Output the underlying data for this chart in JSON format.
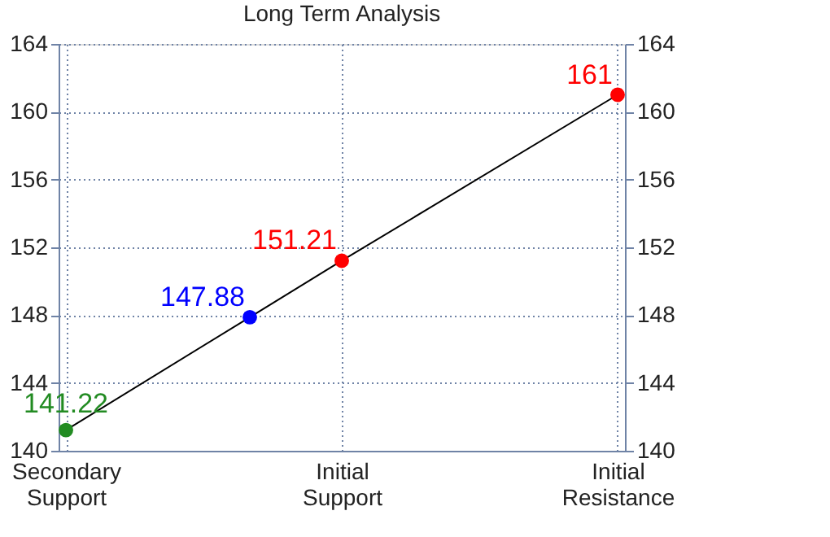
{
  "chart_data": {
    "type": "line",
    "title": "Long Term Analysis",
    "categories": [
      "Secondary Support",
      null,
      null,
      "Initial Support",
      null,
      null,
      "Initial Resistance"
    ],
    "series": [
      {
        "color": "#000000",
        "colors": [
          "#228b22",
          null,
          "#0000ff",
          "#ff0000",
          null,
          null,
          "#ff0000"
        ],
        "values": [
          141.22,
          null,
          147.88,
          151.21,
          null,
          null,
          161
        ]
      }
    ],
    "ylim": [
      140,
      164
    ],
    "yticks": [
      140,
      144,
      148,
      152,
      156,
      160,
      164
    ],
    "y2lim": [
      140,
      164
    ],
    "y2ticks": [
      140,
      144,
      148,
      152,
      156,
      160,
      164
    ],
    "grid": true,
    "marker": "circle",
    "line_style": "solid",
    "data_labels": true
  }
}
